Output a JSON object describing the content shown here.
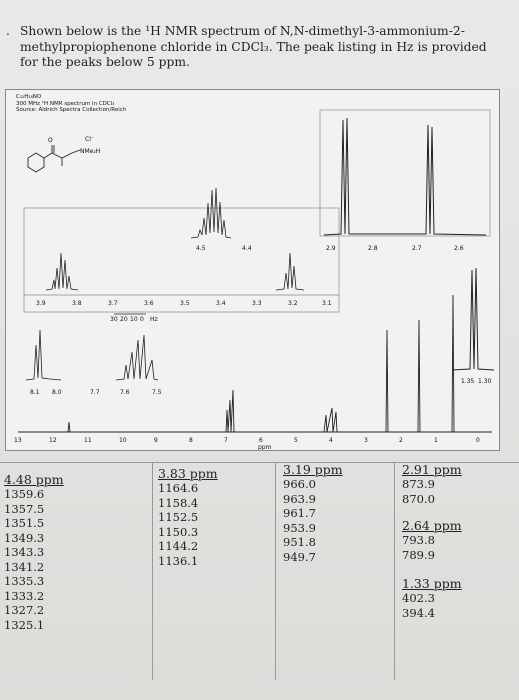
{
  "question": {
    "bullet": ".",
    "text": "Shown below is the ¹H NMR spectrum of N,N-dimethyl-3-ammonium-2-methylpropiophenone chloride in CDCl₃. The peak listing in Hz is provided for the peaks below 5 ppm."
  },
  "spectrum": {
    "formula": "C₁₂H₁₈NO",
    "instrument": "300 MHz ¹H NMR spectrum in CDCl₃",
    "source": "Source: Aldrich Spectra Collection/Reich",
    "counterion": "Cl⁻",
    "amine_label": "NMe₂H",
    "inset1_ticks": [
      "3.9",
      "3.8",
      "3.7",
      "3.6",
      "3.5",
      "3.4",
      "3.3",
      "3.2",
      "3.1"
    ],
    "inset2_ticks": [
      "4.5",
      "4.4"
    ],
    "inset3_ticks": [
      "2.9",
      "2.8",
      "2.7",
      "2.6"
    ],
    "hz_scale": [
      "30",
      "20",
      "10",
      "0",
      "Hz"
    ],
    "inset4_ticks": [
      "8.1",
      "8.0",
      "7.7",
      "7.6",
      "7.5"
    ],
    "inset5_ticks": [
      "1.35",
      "1.30"
    ],
    "main_ticks": [
      "13",
      "12",
      "11",
      "10",
      "9",
      "8",
      "7",
      "6",
      "5",
      "4",
      "3",
      "2",
      "1",
      "0"
    ],
    "ppm_label": "ppm"
  },
  "peaks": [
    {
      "ppm": "4.48 ppm",
      "hz": [
        "1359.6",
        "1357.5",
        "1351.5",
        "1349.3",
        "1343.3",
        "1341.2",
        "1335.3",
        "1333.2",
        "1327.2",
        "1325.1"
      ]
    },
    {
      "ppm": "3.83 ppm",
      "hz": [
        "1164.6",
        "1158.4",
        "1152.5",
        "1150.3",
        "1144.2",
        "1136.1"
      ]
    },
    {
      "ppm": "3.19 ppm",
      "hz": [
        "966.0",
        "963.9",
        "961.7",
        "953.9",
        "951.8",
        "949.7"
      ]
    },
    {
      "ppm": "2.91 ppm",
      "hz": [
        "873.9",
        "870.0"
      ]
    },
    {
      "ppm": "2.64 ppm",
      "hz": [
        "793.8",
        "789.9"
      ]
    },
    {
      "ppm": "1.33 ppm",
      "hz": [
        "402.3",
        "394.4"
      ]
    }
  ]
}
